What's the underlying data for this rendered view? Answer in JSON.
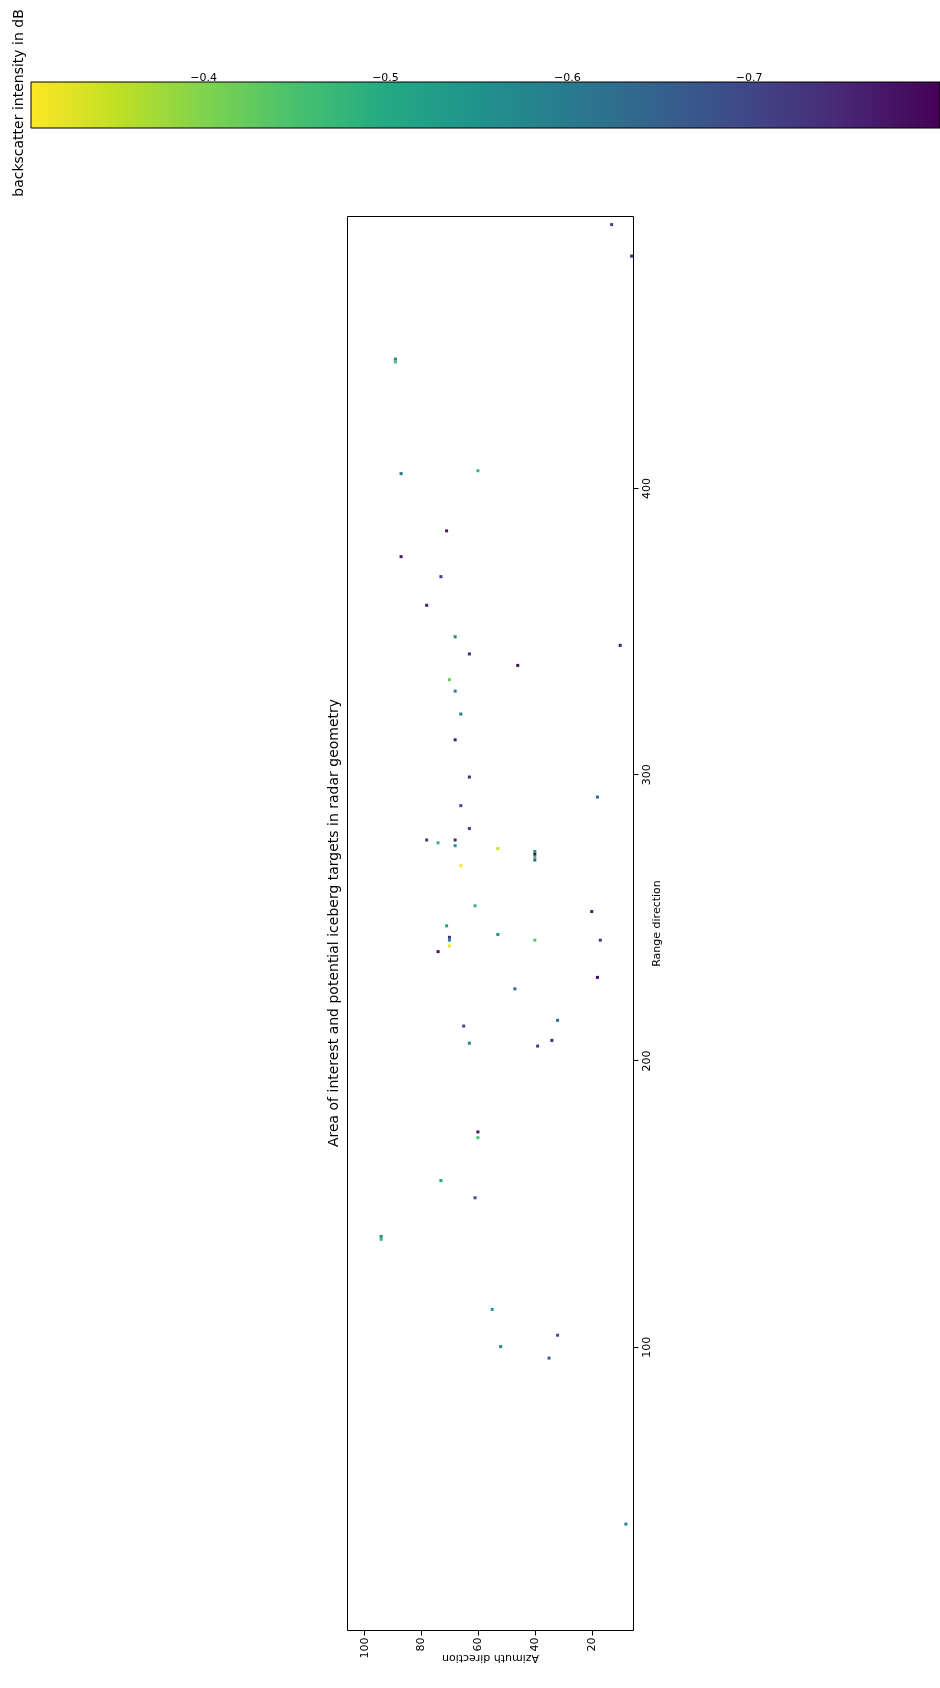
{
  "chart_data": {
    "type": "scatter",
    "title": "Area of interest and potential iceberg targets in radar geometry",
    "xlabel": "Azimuth direction",
    "ylabel": "Range direction",
    "clabel": "backscatter intensity in dB",
    "x": [
      13,
      6,
      89,
      89,
      87,
      60,
      71,
      87,
      73,
      78,
      68,
      10,
      63,
      46,
      70,
      68,
      66,
      68,
      63,
      18,
      66,
      63,
      78,
      74,
      68,
      68,
      53,
      40,
      40,
      40,
      40,
      66,
      61,
      20,
      71,
      53,
      40,
      17,
      70,
      70,
      70,
      74,
      18,
      47,
      32,
      65,
      34,
      63,
      39,
      60,
      60,
      73,
      61,
      94,
      94,
      55,
      32,
      52,
      35,
      8
    ],
    "values": [
      492,
      481,
      445,
      444,
      405,
      406,
      385,
      376,
      369,
      359,
      348,
      345,
      342,
      338,
      333,
      329,
      321,
      312,
      299,
      292,
      289,
      281,
      277,
      276,
      277,
      275,
      274,
      273,
      272,
      271,
      270,
      268,
      254,
      252,
      247,
      244,
      242,
      242,
      243,
      242,
      240,
      238,
      229,
      225,
      214,
      212,
      207,
      206,
      205,
      175,
      173,
      158,
      152,
      138.5,
      137.5,
      113,
      104,
      100,
      96,
      38
    ],
    "cvalues": [
      -0.72,
      -0.75,
      -0.6,
      -0.45,
      -0.62,
      -0.47,
      -0.78,
      -0.78,
      -0.72,
      -0.77,
      -0.58,
      -0.77,
      -0.75,
      -0.79,
      -0.42,
      -0.58,
      -0.6,
      -0.77,
      -0.75,
      -0.63,
      -0.68,
      -0.72,
      -0.73,
      -0.48,
      -0.75,
      -0.55,
      -0.35,
      -0.55,
      -0.78,
      -0.45,
      -0.65,
      -0.31,
      -0.48,
      -0.77,
      -0.52,
      -0.55,
      -0.44,
      -0.73,
      -0.75,
      -0.56,
      -0.31,
      -0.79,
      -0.8,
      -0.63,
      -0.63,
      -0.7,
      -0.76,
      -0.57,
      -0.73,
      -0.78,
      -0.45,
      -0.51,
      -0.68,
      -0.57,
      -0.47,
      -0.53,
      -0.68,
      -0.58,
      -0.66,
      -0.58
    ],
    "xlim": [
      106,
      5.5
    ],
    "ylim": [
      1,
      495
    ],
    "xticks": [
      100,
      80,
      60,
      40,
      20
    ],
    "yticks": [
      100,
      200,
      300,
      400
    ],
    "clim": [
      -0.305,
      -0.805
    ],
    "cticks": [
      {
        "value": -0.4,
        "label": "−0.4"
      },
      {
        "value": -0.5,
        "label": "−0.5"
      },
      {
        "value": -0.6,
        "label": "−0.6"
      },
      {
        "value": -0.7,
        "label": "−0.7"
      }
    ],
    "marker": "square",
    "grid": false
  }
}
